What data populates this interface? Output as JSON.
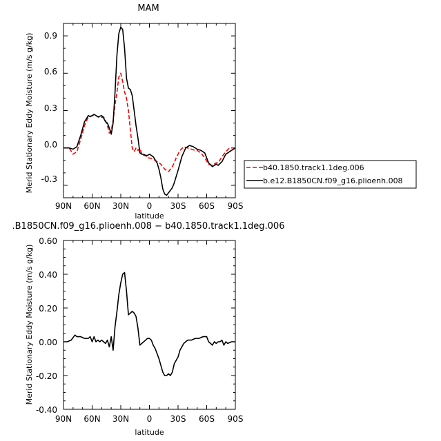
{
  "chart_data": [
    {
      "type": "line",
      "title": "MAM",
      "xlabel": "latitude",
      "ylabel": "Merid Stationary Eddy Moisture (m/s g/kg)",
      "xlim": [
        90,
        -90
      ],
      "ylim": [
        -0.4,
        1.0
      ],
      "x_tick_labels": [
        "90N",
        "60N",
        "30N",
        "0",
        "30S",
        "60S",
        "90S"
      ],
      "y_tick_labels": [
        "0.9",
        "0.6",
        "0.3",
        "0.0",
        "-0.3"
      ],
      "grid": false,
      "legend_position": "right, outside plot",
      "series": [
        {
          "name": "b40.1850.track1.1deg.006",
          "color": "#ff0000",
          "dash": "dashed",
          "x": [
            90,
            84,
            80,
            76,
            72,
            68,
            64,
            60,
            56,
            52,
            48,
            46,
            44,
            42,
            40,
            38,
            36,
            34,
            32,
            30,
            28,
            26,
            24,
            22,
            20,
            18,
            16,
            14,
            12,
            10,
            8,
            6,
            4,
            2,
            0,
            -4,
            -8,
            -12,
            -16,
            -20,
            -24,
            -26,
            -28,
            -32,
            -36,
            -40,
            -44,
            -48,
            -50,
            -54,
            -58,
            -62,
            -66,
            -70,
            -72,
            -76,
            -80,
            -84,
            -90
          ],
          "y": [
            0.0,
            0.0,
            -0.05,
            -0.03,
            0.07,
            0.18,
            0.25,
            0.26,
            0.26,
            0.24,
            0.25,
            0.22,
            0.18,
            0.12,
            0.14,
            0.22,
            0.35,
            0.45,
            0.57,
            0.6,
            0.53,
            0.45,
            0.4,
            0.3,
            0.15,
            0.0,
            -0.03,
            0.0,
            -0.02,
            0.0,
            -0.05,
            -0.06,
            -0.06,
            -0.08,
            -0.08,
            -0.09,
            -0.11,
            -0.13,
            -0.17,
            -0.19,
            -0.15,
            -0.12,
            -0.08,
            -0.02,
            0.01,
            0.0,
            -0.01,
            -0.02,
            -0.02,
            -0.04,
            -0.08,
            -0.13,
            -0.14,
            -0.12,
            -0.12,
            -0.07,
            -0.03,
            0.0,
            0.0
          ]
        },
        {
          "name": "b.e12.B1850CN.f09_g16.plioenh.008",
          "color": "#000000",
          "dash": "solid",
          "x": [
            90,
            84,
            80,
            76,
            72,
            68,
            64,
            62,
            58,
            54,
            50,
            48,
            46,
            44,
            42,
            40,
            38,
            36,
            34,
            32,
            30,
            28,
            26,
            24,
            22,
            20,
            18,
            16,
            14,
            12,
            10,
            8,
            6,
            4,
            2,
            0,
            -2,
            -4,
            -8,
            -10,
            -12,
            -14,
            -16,
            -18,
            -20,
            -22,
            -24,
            -26,
            -30,
            -34,
            -38,
            -42,
            -46,
            -50,
            -54,
            -58,
            -62,
            -66,
            -70,
            -72,
            -76,
            -80,
            -84,
            -90
          ],
          "y": [
            0.0,
            0.0,
            -0.01,
            0.01,
            0.1,
            0.21,
            0.26,
            0.25,
            0.27,
            0.25,
            0.26,
            0.24,
            0.21,
            0.2,
            0.16,
            0.11,
            0.2,
            0.45,
            0.75,
            0.92,
            0.97,
            0.95,
            0.8,
            0.56,
            0.48,
            0.47,
            0.42,
            0.3,
            0.18,
            0.08,
            -0.04,
            -0.05,
            -0.05,
            -0.06,
            -0.06,
            -0.05,
            -0.06,
            -0.07,
            -0.12,
            -0.17,
            -0.24,
            -0.33,
            -0.37,
            -0.38,
            -0.36,
            -0.34,
            -0.32,
            -0.28,
            -0.18,
            -0.07,
            0.0,
            0.02,
            0.01,
            -0.01,
            -0.02,
            -0.04,
            -0.12,
            -0.15,
            -0.13,
            -0.14,
            -0.11,
            -0.05,
            -0.03,
            0.0
          ]
        }
      ]
    },
    {
      "type": "line",
      "title": ".B1850CN.f09_g16.plioenh.008 − b40.1850.track1.1deg.006",
      "xlabel": "latitude",
      "ylabel": "Merid Stationary Eddy Moisture (m/s g/kg)",
      "xlim": [
        90,
        -90
      ],
      "ylim": [
        -0.4,
        0.6
      ],
      "x_tick_labels": [
        "90N",
        "60N",
        "30N",
        "0",
        "30S",
        "60S",
        "90S"
      ],
      "y_tick_labels": [
        "0.60",
        "0.40",
        "0.20",
        "0.00",
        "-0.20",
        "-0.40"
      ],
      "grid": false,
      "series": [
        {
          "color": "#000000",
          "dash": "solid",
          "x": [
            90,
            86,
            82,
            78,
            76,
            72,
            68,
            64,
            62,
            60,
            58,
            56,
            54,
            52,
            50,
            48,
            46,
            44,
            42,
            40,
            38,
            36,
            34,
            32,
            30,
            28,
            26,
            24,
            22,
            20,
            18,
            16,
            14,
            12,
            10,
            8,
            6,
            4,
            2,
            0,
            -2,
            -4,
            -6,
            -8,
            -10,
            -12,
            -14,
            -16,
            -18,
            -20,
            -22,
            -24,
            -26,
            -28,
            -30,
            -32,
            -34,
            -36,
            -38,
            -40,
            -44,
            -48,
            -52,
            -56,
            -60,
            -62,
            -64,
            -66,
            -68,
            -70,
            -72,
            -74,
            -76,
            -78,
            -80,
            -82,
            -86,
            -90
          ],
          "y": [
            0.0,
            0.0,
            0.01,
            0.04,
            0.03,
            0.03,
            0.02,
            0.02,
            0.03,
            0.0,
            0.03,
            0.0,
            0.01,
            0.0,
            0.01,
            0.0,
            -0.01,
            0.01,
            -0.03,
            0.03,
            -0.05,
            0.09,
            0.18,
            0.28,
            0.35,
            0.4,
            0.41,
            0.3,
            0.16,
            0.17,
            0.18,
            0.17,
            0.15,
            0.08,
            -0.02,
            -0.01,
            0.0,
            0.01,
            0.02,
            0.02,
            0.01,
            -0.02,
            -0.04,
            -0.07,
            -0.1,
            -0.14,
            -0.18,
            -0.2,
            -0.2,
            -0.19,
            -0.2,
            -0.18,
            -0.13,
            -0.11,
            -0.09,
            -0.05,
            -0.03,
            -0.01,
            0.0,
            0.01,
            0.01,
            0.02,
            0.02,
            0.03,
            0.03,
            0.0,
            -0.01,
            -0.02,
            0.0,
            -0.01,
            0.0,
            0.0,
            0.01,
            -0.02,
            0.0,
            -0.01,
            0.0,
            0.0
          ]
        }
      ]
    }
  ]
}
